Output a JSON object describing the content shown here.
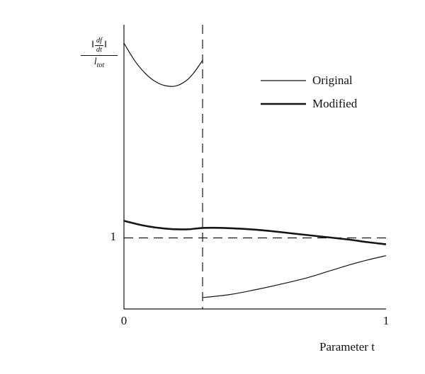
{
  "chart_data": {
    "type": "line",
    "title": "",
    "xlabel": "Parameter t",
    "ylabel": "||df/dt|| / l_tot",
    "ylabel_parts": {
      "norm_left": "‖",
      "norm_right": "‖",
      "inner_num": "df",
      "inner_den": "dt",
      "denom_base": "l",
      "denom_sub": "tot"
    },
    "xlim": [
      0,
      1
    ],
    "ylim": [
      0.5,
      2.5
    ],
    "grid": false,
    "xticks": [
      {
        "value": 0,
        "label": "0"
      },
      {
        "value": 1,
        "label": "1"
      }
    ],
    "yticks": [
      {
        "value": 1,
        "label": "1"
      }
    ],
    "reference_lines": [
      {
        "orientation": "horizontal",
        "value": 1,
        "style": "dashed"
      },
      {
        "orientation": "vertical",
        "value": 0.3,
        "style": "dashed"
      }
    ],
    "legend": {
      "position": "upper-right-inside",
      "entries": [
        {
          "label": "Original",
          "weight": "thin"
        },
        {
          "label": "Modified",
          "weight": "thick"
        }
      ]
    },
    "series": [
      {
        "name": "original-segment-1",
        "legend": "Original",
        "width": 1.2,
        "points": [
          [
            0,
            2.37
          ],
          [
            0.04,
            2.25
          ],
          [
            0.08,
            2.16
          ],
          [
            0.12,
            2.1
          ],
          [
            0.16,
            2.07
          ],
          [
            0.2,
            2.07
          ],
          [
            0.24,
            2.11
          ],
          [
            0.27,
            2.17
          ],
          [
            0.3,
            2.25
          ]
        ]
      },
      {
        "name": "original-segment-2",
        "legend": "Original",
        "width": 1.2,
        "points": [
          [
            0.3,
            0.58
          ],
          [
            0.4,
            0.6
          ],
          [
            0.5,
            0.635
          ],
          [
            0.6,
            0.675
          ],
          [
            0.7,
            0.72
          ],
          [
            0.78,
            0.765
          ],
          [
            0.86,
            0.81
          ],
          [
            0.93,
            0.845
          ],
          [
            1.0,
            0.875
          ]
        ]
      },
      {
        "name": "modified",
        "legend": "Modified",
        "width": 2.6,
        "points": [
          [
            0,
            1.12
          ],
          [
            0.08,
            1.085
          ],
          [
            0.16,
            1.065
          ],
          [
            0.24,
            1.06
          ],
          [
            0.3,
            1.07
          ],
          [
            0.38,
            1.07
          ],
          [
            0.46,
            1.063
          ],
          [
            0.55,
            1.05
          ],
          [
            0.65,
            1.03
          ],
          [
            0.75,
            1.01
          ],
          [
            0.85,
            0.99
          ],
          [
            0.93,
            0.97
          ],
          [
            1.0,
            0.955
          ]
        ]
      }
    ]
  }
}
